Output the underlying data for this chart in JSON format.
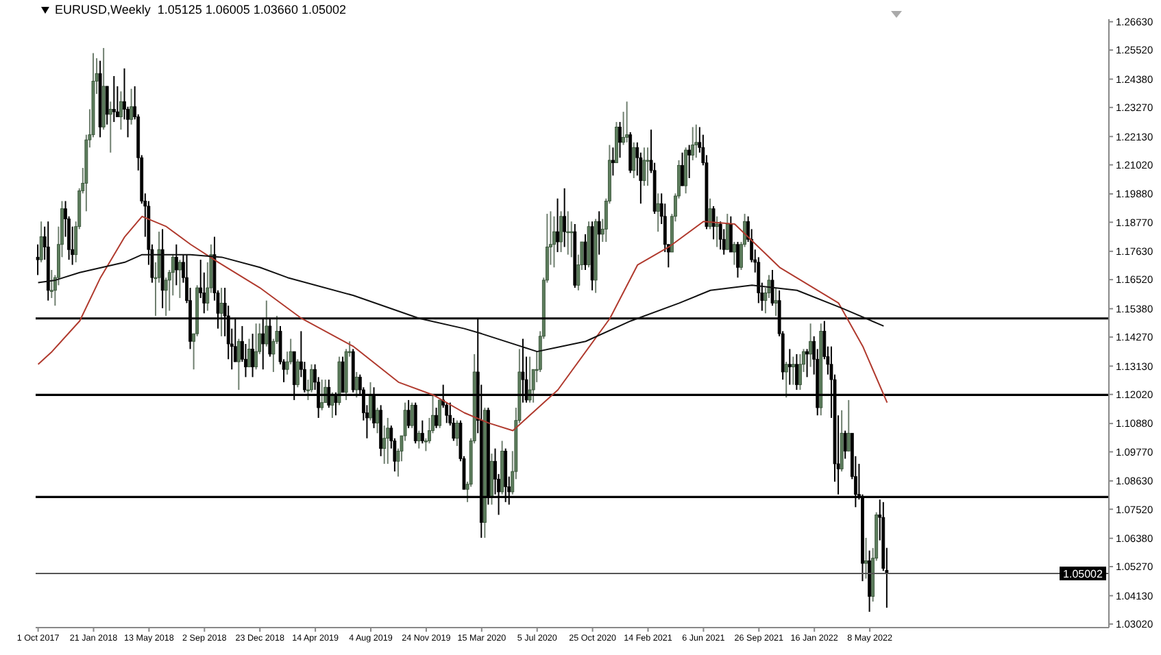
{
  "chart_data": {
    "type": "candlestick",
    "title": "EURUSD,Weekly  1.05125 1.06005 1.03660 1.05002",
    "x": [
      "2017-10-01",
      "2017-10-08",
      "2017-10-15",
      "2017-10-22",
      "2017-10-29",
      "2017-11-05",
      "2017-11-12",
      "2017-11-19",
      "2017-11-26",
      "2017-12-03",
      "2017-12-10",
      "2017-12-17",
      "2017-12-24",
      "2017-12-31",
      "2018-01-07",
      "2018-01-14",
      "2018-01-21",
      "2018-01-28",
      "2018-02-04",
      "2018-02-11",
      "2018-02-18",
      "2018-02-25",
      "2018-03-04",
      "2018-03-11",
      "2018-03-18",
      "2018-03-25",
      "2018-04-01",
      "2018-04-08",
      "2018-04-15",
      "2018-04-22",
      "2018-04-29",
      "2018-05-06",
      "2018-05-13",
      "2018-05-20",
      "2018-05-27",
      "2018-06-03",
      "2018-06-10",
      "2018-06-17",
      "2018-06-24",
      "2018-07-01",
      "2018-07-08",
      "2018-07-15",
      "2018-07-22",
      "2018-07-29",
      "2018-08-05",
      "2018-08-12",
      "2018-08-19",
      "2018-08-26",
      "2018-09-02",
      "2018-09-09",
      "2018-09-16",
      "2018-09-23",
      "2018-09-30",
      "2018-10-07",
      "2018-10-14",
      "2018-10-21",
      "2018-10-28",
      "2018-11-04",
      "2018-11-11",
      "2018-11-18",
      "2018-11-25",
      "2018-12-02",
      "2018-12-09",
      "2018-12-16",
      "2018-12-23",
      "2018-12-30",
      "2019-01-06",
      "2019-01-13",
      "2019-01-20",
      "2019-01-27",
      "2019-02-03",
      "2019-02-10",
      "2019-02-17",
      "2019-02-24",
      "2019-03-03",
      "2019-03-10",
      "2019-03-17",
      "2019-03-24",
      "2019-03-31",
      "2019-04-07",
      "2019-04-14",
      "2019-04-21",
      "2019-04-28",
      "2019-05-05",
      "2019-05-12",
      "2019-05-19",
      "2019-05-26",
      "2019-06-02",
      "2019-06-09",
      "2019-06-16",
      "2019-06-23",
      "2019-06-30",
      "2019-07-07",
      "2019-07-14",
      "2019-07-21",
      "2019-07-28",
      "2019-08-04",
      "2019-08-11",
      "2019-08-18",
      "2019-08-25",
      "2019-09-01",
      "2019-09-08",
      "2019-09-15",
      "2019-09-22",
      "2019-09-29",
      "2019-10-06",
      "2019-10-13",
      "2019-10-20",
      "2019-10-27",
      "2019-11-03",
      "2019-11-10",
      "2019-11-17",
      "2019-11-24",
      "2019-12-01",
      "2019-12-08",
      "2019-12-15",
      "2019-12-22",
      "2019-12-29",
      "2020-01-05",
      "2020-01-12",
      "2020-01-19",
      "2020-01-26",
      "2020-02-02",
      "2020-02-09",
      "2020-02-16",
      "2020-02-23",
      "2020-03-01",
      "2020-03-08",
      "2020-03-15",
      "2020-03-22",
      "2020-03-29",
      "2020-04-05",
      "2020-04-12",
      "2020-04-19",
      "2020-04-26",
      "2020-05-03",
      "2020-05-10",
      "2020-05-17",
      "2020-05-24",
      "2020-05-31",
      "2020-06-07",
      "2020-06-14",
      "2020-06-21",
      "2020-06-28",
      "2020-07-05",
      "2020-07-12",
      "2020-07-19",
      "2020-07-26",
      "2020-08-02",
      "2020-08-09",
      "2020-08-16",
      "2020-08-23",
      "2020-08-30",
      "2020-09-06",
      "2020-09-13",
      "2020-09-20",
      "2020-09-27",
      "2020-10-04",
      "2020-10-11",
      "2020-10-18",
      "2020-10-25",
      "2020-11-01",
      "2020-11-08",
      "2020-11-15",
      "2020-11-22",
      "2020-11-29",
      "2020-12-06",
      "2020-12-13",
      "2020-12-20",
      "2020-12-27",
      "2021-01-03",
      "2021-01-10",
      "2021-01-17",
      "2021-01-24",
      "2021-01-31",
      "2021-02-07",
      "2021-02-14",
      "2021-02-21",
      "2021-02-28",
      "2021-03-07",
      "2021-03-14",
      "2021-03-21",
      "2021-03-28",
      "2021-04-04",
      "2021-04-11",
      "2021-04-18",
      "2021-04-25",
      "2021-05-02",
      "2021-05-09",
      "2021-05-16",
      "2021-05-23",
      "2021-05-30",
      "2021-06-06",
      "2021-06-13",
      "2021-06-20",
      "2021-06-27",
      "2021-07-04",
      "2021-07-11",
      "2021-07-18",
      "2021-07-25",
      "2021-08-01",
      "2021-08-08",
      "2021-08-15",
      "2021-08-22",
      "2021-08-29",
      "2021-09-05",
      "2021-09-12",
      "2021-09-19",
      "2021-09-26",
      "2021-10-03",
      "2021-10-10",
      "2021-10-17",
      "2021-10-24",
      "2021-10-31",
      "2021-11-07",
      "2021-11-14",
      "2021-11-21",
      "2021-11-28",
      "2021-12-05",
      "2021-12-12",
      "2021-12-19",
      "2021-12-26",
      "2022-01-02",
      "2022-01-09",
      "2022-01-16",
      "2022-01-23",
      "2022-01-30",
      "2022-02-06",
      "2022-02-13",
      "2022-02-20",
      "2022-02-27",
      "2022-03-06",
      "2022-03-13",
      "2022-03-20",
      "2022-03-27",
      "2022-04-03",
      "2022-04-10",
      "2022-04-17",
      "2022-04-24",
      "2022-05-01",
      "2022-05-08",
      "2022-05-15",
      "2022-05-22",
      "2022-05-29",
      "2022-06-05",
      "2022-06-12"
    ],
    "ohlc": [
      [
        1.174,
        1.179,
        1.167,
        1.173
      ],
      [
        1.173,
        1.188,
        1.172,
        1.182
      ],
      [
        1.182,
        1.186,
        1.173,
        1.178
      ],
      [
        1.178,
        1.188,
        1.157,
        1.161
      ],
      [
        1.161,
        1.169,
        1.158,
        1.161
      ],
      [
        1.161,
        1.167,
        1.155,
        1.166
      ],
      [
        1.166,
        1.186,
        1.163,
        1.179
      ],
      [
        1.179,
        1.196,
        1.174,
        1.193
      ],
      [
        1.193,
        1.196,
        1.182,
        1.189
      ],
      [
        1.189,
        1.19,
        1.173,
        1.177
      ],
      [
        1.177,
        1.186,
        1.171,
        1.175
      ],
      [
        1.175,
        1.188,
        1.172,
        1.186
      ],
      [
        1.186,
        1.201,
        1.185,
        1.2
      ],
      [
        1.2,
        1.209,
        1.199,
        1.203
      ],
      [
        1.203,
        1.222,
        1.192,
        1.22
      ],
      [
        1.22,
        1.232,
        1.217,
        1.222
      ],
      [
        1.222,
        1.254,
        1.221,
        1.243
      ],
      [
        1.243,
        1.252,
        1.238,
        1.246
      ],
      [
        1.246,
        1.251,
        1.221,
        1.225
      ],
      [
        1.225,
        1.256,
        1.224,
        1.241
      ],
      [
        1.241,
        1.241,
        1.226,
        1.23
      ],
      [
        1.23,
        1.235,
        1.215,
        1.232
      ],
      [
        1.232,
        1.245,
        1.227,
        1.231
      ],
      [
        1.231,
        1.241,
        1.229,
        1.229
      ],
      [
        1.229,
        1.239,
        1.224,
        1.235
      ],
      [
        1.235,
        1.248,
        1.228,
        1.232
      ],
      [
        1.232,
        1.233,
        1.221,
        1.228
      ],
      [
        1.228,
        1.24,
        1.226,
        1.233
      ],
      [
        1.233,
        1.241,
        1.228,
        1.229
      ],
      [
        1.229,
        1.23,
        1.208,
        1.213
      ],
      [
        1.213,
        1.214,
        1.195,
        1.196
      ],
      [
        1.196,
        1.199,
        1.182,
        1.194
      ],
      [
        1.194,
        1.196,
        1.171,
        1.177
      ],
      [
        1.177,
        1.179,
        1.164,
        1.166
      ],
      [
        1.166,
        1.172,
        1.151,
        1.166
      ],
      [
        1.166,
        1.184,
        1.164,
        1.177
      ],
      [
        1.177,
        1.185,
        1.154,
        1.161
      ],
      [
        1.161,
        1.166,
        1.151,
        1.165
      ],
      [
        1.165,
        1.169,
        1.153,
        1.168
      ],
      [
        1.168,
        1.175,
        1.159,
        1.174
      ],
      [
        1.174,
        1.179,
        1.163,
        1.169
      ],
      [
        1.169,
        1.173,
        1.158,
        1.172
      ],
      [
        1.172,
        1.175,
        1.164,
        1.166
      ],
      [
        1.166,
        1.175,
        1.156,
        1.157
      ],
      [
        1.157,
        1.162,
        1.138,
        1.141
      ],
      [
        1.141,
        1.144,
        1.13,
        1.144
      ],
      [
        1.144,
        1.163,
        1.143,
        1.162
      ],
      [
        1.162,
        1.173,
        1.158,
        1.16
      ],
      [
        1.16,
        1.168,
        1.152,
        1.156
      ],
      [
        1.156,
        1.172,
        1.153,
        1.162
      ],
      [
        1.162,
        1.179,
        1.16,
        1.175
      ],
      [
        1.175,
        1.182,
        1.157,
        1.16
      ],
      [
        1.16,
        1.161,
        1.146,
        1.152
      ],
      [
        1.152,
        1.162,
        1.143,
        1.156
      ],
      [
        1.156,
        1.162,
        1.143,
        1.151
      ],
      [
        1.151,
        1.155,
        1.134,
        1.14
      ],
      [
        1.14,
        1.146,
        1.13,
        1.139
      ],
      [
        1.139,
        1.15,
        1.133,
        1.133
      ],
      [
        1.133,
        1.142,
        1.122,
        1.141
      ],
      [
        1.141,
        1.147,
        1.133,
        1.134
      ],
      [
        1.134,
        1.14,
        1.127,
        1.131
      ],
      [
        1.131,
        1.142,
        1.131,
        1.138
      ],
      [
        1.138,
        1.144,
        1.127,
        1.131
      ],
      [
        1.131,
        1.148,
        1.13,
        1.137
      ],
      [
        1.137,
        1.148,
        1.136,
        1.144
      ],
      [
        1.144,
        1.15,
        1.13,
        1.14
      ],
      [
        1.14,
        1.157,
        1.139,
        1.147
      ],
      [
        1.147,
        1.15,
        1.135,
        1.136
      ],
      [
        1.136,
        1.142,
        1.129,
        1.141
      ],
      [
        1.141,
        1.151,
        1.14,
        1.145
      ],
      [
        1.145,
        1.147,
        1.132,
        1.133
      ],
      [
        1.133,
        1.134,
        1.125,
        1.13
      ],
      [
        1.13,
        1.137,
        1.128,
        1.133
      ],
      [
        1.133,
        1.142,
        1.132,
        1.137
      ],
      [
        1.137,
        1.137,
        1.118,
        1.124
      ],
      [
        1.124,
        1.134,
        1.123,
        1.133
      ],
      [
        1.133,
        1.145,
        1.127,
        1.13
      ],
      [
        1.13,
        1.133,
        1.121,
        1.122
      ],
      [
        1.122,
        1.126,
        1.118,
        1.122
      ],
      [
        1.122,
        1.132,
        1.121,
        1.13
      ],
      [
        1.13,
        1.132,
        1.122,
        1.125
      ],
      [
        1.125,
        1.127,
        1.111,
        1.115
      ],
      [
        1.115,
        1.126,
        1.114,
        1.117
      ],
      [
        1.117,
        1.126,
        1.117,
        1.123
      ],
      [
        1.123,
        1.126,
        1.115,
        1.116
      ],
      [
        1.116,
        1.121,
        1.111,
        1.12
      ],
      [
        1.12,
        1.121,
        1.112,
        1.117
      ],
      [
        1.117,
        1.135,
        1.116,
        1.133
      ],
      [
        1.133,
        1.135,
        1.121,
        1.121
      ],
      [
        1.121,
        1.138,
        1.118,
        1.137
      ],
      [
        1.137,
        1.141,
        1.135,
        1.137
      ],
      [
        1.137,
        1.138,
        1.121,
        1.122
      ],
      [
        1.122,
        1.129,
        1.119,
        1.127
      ],
      [
        1.127,
        1.128,
        1.12,
        1.122
      ],
      [
        1.122,
        1.123,
        1.11,
        1.113
      ],
      [
        1.113,
        1.116,
        1.103,
        1.111
      ],
      [
        1.111,
        1.125,
        1.11,
        1.12
      ],
      [
        1.12,
        1.123,
        1.107,
        1.109
      ],
      [
        1.109,
        1.115,
        1.105,
        1.114
      ],
      [
        1.114,
        1.116,
        1.096,
        1.099
      ],
      [
        1.099,
        1.108,
        1.093,
        1.103
      ],
      [
        1.103,
        1.111,
        1.093,
        1.107
      ],
      [
        1.107,
        1.108,
        1.099,
        1.102
      ],
      [
        1.102,
        1.103,
        1.09,
        1.094
      ],
      [
        1.094,
        1.099,
        1.088,
        1.098
      ],
      [
        1.098,
        1.104,
        1.094,
        1.104
      ],
      [
        1.104,
        1.117,
        1.102,
        1.114
      ],
      [
        1.114,
        1.118,
        1.107,
        1.108
      ],
      [
        1.108,
        1.117,
        1.107,
        1.116
      ],
      [
        1.116,
        1.117,
        1.101,
        1.102
      ],
      [
        1.102,
        1.106,
        1.099,
        1.105
      ],
      [
        1.105,
        1.11,
        1.101,
        1.102
      ],
      [
        1.102,
        1.103,
        1.098,
        1.102
      ],
      [
        1.102,
        1.111,
        1.101,
        1.106
      ],
      [
        1.106,
        1.12,
        1.105,
        1.112
      ],
      [
        1.112,
        1.115,
        1.107,
        1.108
      ],
      [
        1.108,
        1.118,
        1.107,
        1.118
      ],
      [
        1.118,
        1.124,
        1.115,
        1.116
      ],
      [
        1.116,
        1.117,
        1.109,
        1.112
      ],
      [
        1.112,
        1.117,
        1.108,
        1.109
      ],
      [
        1.109,
        1.111,
        1.102,
        1.103
      ],
      [
        1.103,
        1.11,
        1.1,
        1.109
      ],
      [
        1.109,
        1.11,
        1.094,
        1.095
      ],
      [
        1.095,
        1.096,
        1.083,
        1.083
      ],
      [
        1.083,
        1.086,
        1.078,
        1.085
      ],
      [
        1.085,
        1.103,
        1.084,
        1.102
      ],
      [
        1.102,
        1.136,
        1.101,
        1.129
      ],
      [
        1.129,
        1.15,
        1.105,
        1.11
      ],
      [
        1.11,
        1.124,
        1.064,
        1.07
      ],
      [
        1.07,
        1.115,
        1.064,
        1.114
      ],
      [
        1.114,
        1.115,
        1.077,
        1.08
      ],
      [
        1.08,
        1.097,
        1.077,
        1.094
      ],
      [
        1.094,
        1.099,
        1.081,
        1.087
      ],
      [
        1.087,
        1.089,
        1.073,
        1.082
      ],
      [
        1.082,
        1.102,
        1.081,
        1.098
      ],
      [
        1.098,
        1.099,
        1.078,
        1.084
      ],
      [
        1.084,
        1.088,
        1.077,
        1.082
      ],
      [
        1.082,
        1.098,
        1.081,
        1.09
      ],
      [
        1.09,
        1.115,
        1.087,
        1.11
      ],
      [
        1.11,
        1.138,
        1.109,
        1.129
      ],
      [
        1.129,
        1.142,
        1.117,
        1.126
      ],
      [
        1.126,
        1.135,
        1.117,
        1.118
      ],
      [
        1.118,
        1.135,
        1.117,
        1.122
      ],
      [
        1.122,
        1.13,
        1.117,
        1.13
      ],
      [
        1.13,
        1.137,
        1.125,
        1.13
      ],
      [
        1.13,
        1.145,
        1.129,
        1.143
      ],
      [
        1.143,
        1.166,
        1.142,
        1.165
      ],
      [
        1.165,
        1.191,
        1.164,
        1.178
      ],
      [
        1.178,
        1.192,
        1.171,
        1.179
      ],
      [
        1.179,
        1.19,
        1.17,
        1.184
      ],
      [
        1.184,
        1.197,
        1.176,
        1.18
      ],
      [
        1.18,
        1.192,
        1.176,
        1.19
      ],
      [
        1.19,
        1.201,
        1.178,
        1.184
      ],
      [
        1.184,
        1.192,
        1.175,
        1.184
      ],
      [
        1.184,
        1.188,
        1.174,
        1.184
      ],
      [
        1.184,
        1.187,
        1.162,
        1.163
      ],
      [
        1.163,
        1.175,
        1.161,
        1.171
      ],
      [
        1.171,
        1.18,
        1.169,
        1.18
      ],
      [
        1.18,
        1.183,
        1.169,
        1.171
      ],
      [
        1.171,
        1.188,
        1.17,
        1.186
      ],
      [
        1.186,
        1.188,
        1.161,
        1.165
      ],
      [
        1.165,
        1.189,
        1.16,
        1.188
      ],
      [
        1.188,
        1.192,
        1.175,
        1.183
      ],
      [
        1.183,
        1.189,
        1.18,
        1.185
      ],
      [
        1.185,
        1.197,
        1.18,
        1.196
      ],
      [
        1.196,
        1.218,
        1.195,
        1.212
      ],
      [
        1.212,
        1.217,
        1.206,
        1.211
      ],
      [
        1.211,
        1.227,
        1.211,
        1.225
      ],
      [
        1.225,
        1.227,
        1.213,
        1.219
      ],
      [
        1.219,
        1.231,
        1.218,
        1.221
      ],
      [
        1.221,
        1.235,
        1.219,
        1.222
      ],
      [
        1.222,
        1.223,
        1.207,
        1.208
      ],
      [
        1.208,
        1.219,
        1.205,
        1.217
      ],
      [
        1.217,
        1.219,
        1.206,
        1.213
      ],
      [
        1.213,
        1.215,
        1.195,
        1.204
      ],
      [
        1.204,
        1.217,
        1.202,
        1.212
      ],
      [
        1.212,
        1.217,
        1.202,
        1.212
      ],
      [
        1.212,
        1.224,
        1.207,
        1.208
      ],
      [
        1.208,
        1.211,
        1.191,
        1.192
      ],
      [
        1.192,
        1.199,
        1.184,
        1.195
      ],
      [
        1.195,
        1.199,
        1.187,
        1.19
      ],
      [
        1.19,
        1.195,
        1.176,
        1.179
      ],
      [
        1.179,
        1.179,
        1.17,
        1.176
      ],
      [
        1.176,
        1.191,
        1.176,
        1.19
      ],
      [
        1.19,
        1.199,
        1.188,
        1.198
      ],
      [
        1.198,
        1.212,
        1.197,
        1.21
      ],
      [
        1.21,
        1.215,
        1.202,
        1.202
      ],
      [
        1.202,
        1.217,
        1.199,
        1.216
      ],
      [
        1.216,
        1.218,
        1.205,
        1.214
      ],
      [
        1.214,
        1.225,
        1.212,
        1.218
      ],
      [
        1.218,
        1.226,
        1.213,
        1.219
      ],
      [
        1.219,
        1.225,
        1.215,
        1.217
      ],
      [
        1.217,
        1.222,
        1.21,
        1.211
      ],
      [
        1.211,
        1.214,
        1.185,
        1.186
      ],
      [
        1.186,
        1.197,
        1.185,
        1.193
      ],
      [
        1.193,
        1.194,
        1.181,
        1.186
      ],
      [
        1.186,
        1.19,
        1.178,
        1.187
      ],
      [
        1.187,
        1.188,
        1.177,
        1.181
      ],
      [
        1.181,
        1.185,
        1.175,
        1.177
      ],
      [
        1.177,
        1.191,
        1.177,
        1.187
      ],
      [
        1.187,
        1.19,
        1.176,
        1.176
      ],
      [
        1.176,
        1.18,
        1.171,
        1.179
      ],
      [
        1.179,
        1.18,
        1.166,
        1.17
      ],
      [
        1.17,
        1.18,
        1.169,
        1.179
      ],
      [
        1.179,
        1.191,
        1.178,
        1.188
      ],
      [
        1.188,
        1.19,
        1.18,
        1.181
      ],
      [
        1.181,
        1.185,
        1.172,
        1.173
      ],
      [
        1.173,
        1.177,
        1.168,
        1.172
      ],
      [
        1.172,
        1.174,
        1.156,
        1.16
      ],
      [
        1.16,
        1.164,
        1.153,
        1.157
      ],
      [
        1.157,
        1.162,
        1.152,
        1.16
      ],
      [
        1.16,
        1.167,
        1.158,
        1.165
      ],
      [
        1.165,
        1.169,
        1.155,
        1.156
      ],
      [
        1.156,
        1.162,
        1.151,
        1.157
      ],
      [
        1.157,
        1.161,
        1.143,
        1.144
      ],
      [
        1.144,
        1.145,
        1.126,
        1.129
      ],
      [
        1.129,
        1.133,
        1.119,
        1.132
      ],
      [
        1.132,
        1.138,
        1.124,
        1.131
      ],
      [
        1.131,
        1.135,
        1.124,
        1.132
      ],
      [
        1.132,
        1.136,
        1.122,
        1.124
      ],
      [
        1.124,
        1.136,
        1.122,
        1.132
      ],
      [
        1.132,
        1.138,
        1.129,
        1.137
      ],
      [
        1.137,
        1.138,
        1.127,
        1.136
      ],
      [
        1.136,
        1.148,
        1.131,
        1.141
      ],
      [
        1.141,
        1.143,
        1.128,
        1.134
      ],
      [
        1.134,
        1.138,
        1.112,
        1.115
      ],
      [
        1.115,
        1.148,
        1.112,
        1.145
      ],
      [
        1.145,
        1.149,
        1.134,
        1.135
      ],
      [
        1.135,
        1.139,
        1.128,
        1.132
      ],
      [
        1.132,
        1.139,
        1.111,
        1.126
      ],
      [
        1.126,
        1.128,
        1.086,
        1.093
      ],
      [
        1.093,
        1.112,
        1.081,
        1.091
      ],
      [
        1.091,
        1.114,
        1.09,
        1.105
      ],
      [
        1.105,
        1.106,
        1.095,
        1.098
      ],
      [
        1.098,
        1.118,
        1.098,
        1.105
      ],
      [
        1.105,
        1.105,
        1.087,
        1.088
      ],
      [
        1.088,
        1.096,
        1.076,
        1.081
      ],
      [
        1.081,
        1.093,
        1.079,
        1.08
      ],
      [
        1.08,
        1.081,
        1.047,
        1.054
      ],
      [
        1.054,
        1.064,
        1.048,
        1.055
      ],
      [
        1.055,
        1.059,
        1.035,
        1.041
      ],
      [
        1.041,
        1.06,
        1.039,
        1.056
      ],
      [
        1.056,
        1.074,
        1.055,
        1.073
      ],
      [
        1.073,
        1.079,
        1.063,
        1.072
      ],
      [
        1.072,
        1.078,
        1.051,
        1.052
      ],
      [
        1.05125,
        1.06005,
        1.0366,
        1.05002
      ]
    ],
    "series": [
      {
        "type": "line",
        "color": "#b03a2e",
        "x": [
          "2017-10-01",
          "2017-10-29",
          "2017-12-24",
          "2018-02-04",
          "2018-03-25",
          "2018-04-29",
          "2018-06-17",
          "2018-08-05",
          "2018-09-30",
          "2018-12-23",
          "2019-03-17",
          "2019-06-30",
          "2019-09-29",
          "2019-12-08",
          "2020-02-09",
          "2020-03-29",
          "2020-05-17",
          "2020-08-16",
          "2020-11-29",
          "2021-01-24",
          "2021-03-28",
          "2021-06-06",
          "2021-08-08",
          "2021-11-07",
          "2022-03-06",
          "2022-04-24",
          "2022-06-12"
        ],
        "values": [
          1.132,
          1.137,
          1.149,
          1.166,
          1.182,
          1.19,
          1.186,
          1.179,
          1.172,
          1.162,
          1.15,
          1.139,
          1.125,
          1.12,
          1.113,
          1.109,
          1.106,
          1.122,
          1.15,
          1.171,
          1.178,
          1.188,
          1.187,
          1.17,
          1.156,
          1.139,
          1.117
        ]
      },
      {
        "type": "line",
        "color": "#111111",
        "x": [
          "2017-10-01",
          "2017-11-05",
          "2017-12-24",
          "2018-03-25",
          "2018-04-29",
          "2018-08-05",
          "2018-10-07",
          "2018-12-23",
          "2019-02-17",
          "2019-06-30",
          "2019-11-10",
          "2020-02-09",
          "2020-03-15",
          "2020-07-05",
          "2020-10-11",
          "2021-01-10",
          "2021-04-18",
          "2021-06-20",
          "2021-09-12",
          "2021-12-12",
          "2022-03-13",
          "2022-06-05"
        ],
        "values": [
          1.164,
          1.165,
          1.168,
          1.172,
          1.175,
          1.175,
          1.174,
          1.17,
          1.166,
          1.159,
          1.15,
          1.146,
          1.144,
          1.137,
          1.141,
          1.149,
          1.156,
          1.161,
          1.163,
          1.161,
          1.154,
          1.147
        ]
      }
    ],
    "ref_lines": [
      {
        "axis": "y",
        "value": 1.15,
        "color": "#000000"
      },
      {
        "axis": "y",
        "value": 1.12,
        "color": "#000000"
      },
      {
        "axis": "y",
        "value": 1.08,
        "color": "#000000"
      },
      {
        "axis": "y",
        "value": 1.05002,
        "label": "1.05002",
        "color": "#555555"
      }
    ],
    "xlim": [
      "2017-09-26",
      "2023-09-03"
    ],
    "xticks": [
      {
        "value": "2017-10-01",
        "label": "1 Oct 2017"
      },
      {
        "value": "2018-01-21",
        "label": "21 Jan 2018"
      },
      {
        "value": "2018-05-13",
        "label": "13 May 2018"
      },
      {
        "value": "2018-09-02",
        "label": "2 Sep 2018"
      },
      {
        "value": "2018-12-23",
        "label": "23 Dec 2018"
      },
      {
        "value": "2019-04-14",
        "label": "14 Apr 2019"
      },
      {
        "value": "2019-08-04",
        "label": "4 Aug 2019"
      },
      {
        "value": "2019-11-24",
        "label": "24 Nov 2019"
      },
      {
        "value": "2020-03-15",
        "label": "15 Mar 2020"
      },
      {
        "value": "2020-07-05",
        "label": "5 Jul 2020"
      },
      {
        "value": "2020-10-25",
        "label": "25 Oct 2020"
      },
      {
        "value": "2021-02-14",
        "label": "14 Feb 2021"
      },
      {
        "value": "2021-06-06",
        "label": "6 Jun 2021"
      },
      {
        "value": "2021-09-26",
        "label": "26 Sep 2021"
      },
      {
        "value": "2022-01-16",
        "label": "16 Jan 2022"
      },
      {
        "value": "2022-05-08",
        "label": "8 May 2022"
      }
    ],
    "ylim": [
      1.0288,
      1.2673
    ],
    "yticks": [
      {
        "value": 1.2663,
        "label": "1.26630"
      },
      {
        "value": 1.2552,
        "label": "1.25520"
      },
      {
        "value": 1.2438,
        "label": "1.24380"
      },
      {
        "value": 1.2327,
        "label": "1.23270"
      },
      {
        "value": 1.2213,
        "label": "1.22130"
      },
      {
        "value": 1.2102,
        "label": "1.21020"
      },
      {
        "value": 1.1988,
        "label": "1.19880"
      },
      {
        "value": 1.1877,
        "label": "1.18770"
      },
      {
        "value": 1.1763,
        "label": "1.17630"
      },
      {
        "value": 1.1652,
        "label": "1.16520"
      },
      {
        "value": 1.1538,
        "label": "1.15380"
      },
      {
        "value": 1.1427,
        "label": "1.14270"
      },
      {
        "value": 1.1313,
        "label": "1.13130"
      },
      {
        "value": 1.1202,
        "label": "1.12020"
      },
      {
        "value": 1.1088,
        "label": "1.10880"
      },
      {
        "value": 1.0977,
        "label": "1.09770"
      },
      {
        "value": 1.0863,
        "label": "1.08630"
      },
      {
        "value": 1.0752,
        "label": "1.07520"
      },
      {
        "value": 1.0638,
        "label": "1.06380"
      },
      {
        "value": 1.0527,
        "label": "1.05270"
      },
      {
        "value": 1.0413,
        "label": "1.04130"
      },
      {
        "value": 1.0302,
        "label": "1.03020"
      }
    ],
    "grid": false,
    "legend": false
  }
}
